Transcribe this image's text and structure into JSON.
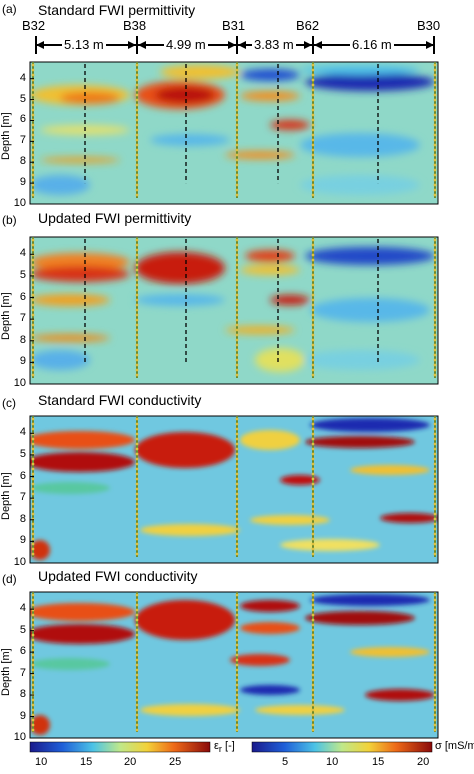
{
  "chart_data": [
    {
      "type": "heatmap",
      "panel_label": "(a)",
      "title": "Standard FWI permittivity",
      "ylabel": "Depth [m]",
      "yticks": [
        "4",
        "5",
        "6",
        "7",
        "8",
        "9",
        "10"
      ],
      "ylim": [
        3.2,
        10
      ],
      "boreholes": [
        "B32",
        "B38",
        "B31",
        "B62",
        "B30"
      ],
      "distances": [
        "5.13 m",
        "4.99 m",
        "3.83 m",
        "6.16 m"
      ],
      "quantity": "permittivity"
    },
    {
      "type": "heatmap",
      "panel_label": "(b)",
      "title": "Updated FWI permittivity",
      "ylabel": "Depth [m]",
      "yticks": [
        "4",
        "5",
        "6",
        "7",
        "8",
        "9",
        "10"
      ],
      "ylim": [
        3.2,
        10
      ],
      "quantity": "permittivity"
    },
    {
      "type": "heatmap",
      "panel_label": "(c)",
      "title": "Standard FWI conductivity",
      "ylabel": "Depth [m]",
      "yticks": [
        "4",
        "5",
        "6",
        "7",
        "8",
        "9",
        "10"
      ],
      "ylim": [
        3.2,
        10
      ],
      "quantity": "conductivity"
    },
    {
      "type": "heatmap",
      "panel_label": "(d)",
      "title": "Updated FWI conductivity",
      "ylabel": "Depth [m]",
      "yticks": [
        "4",
        "5",
        "6",
        "7",
        "8",
        "9",
        "10"
      ],
      "ylim": [
        3.2,
        10
      ],
      "quantity": "conductivity"
    }
  ],
  "colorbars": [
    {
      "label": "ε",
      "sub": "r",
      "unit": "[-]",
      "ticks": [
        "10",
        "15",
        "20",
        "25"
      ],
      "range": [
        8,
        28
      ]
    },
    {
      "label": "σ",
      "sub": "",
      "unit": "[mS/m]",
      "ticks": [
        "5",
        "10",
        "15",
        "20"
      ],
      "range": [
        2,
        21
      ]
    }
  ],
  "colors": {
    "low": "#1a2a9a",
    "mid": "#5ad0e0",
    "midhigh": "#f0e040",
    "high": "#a00808"
  }
}
